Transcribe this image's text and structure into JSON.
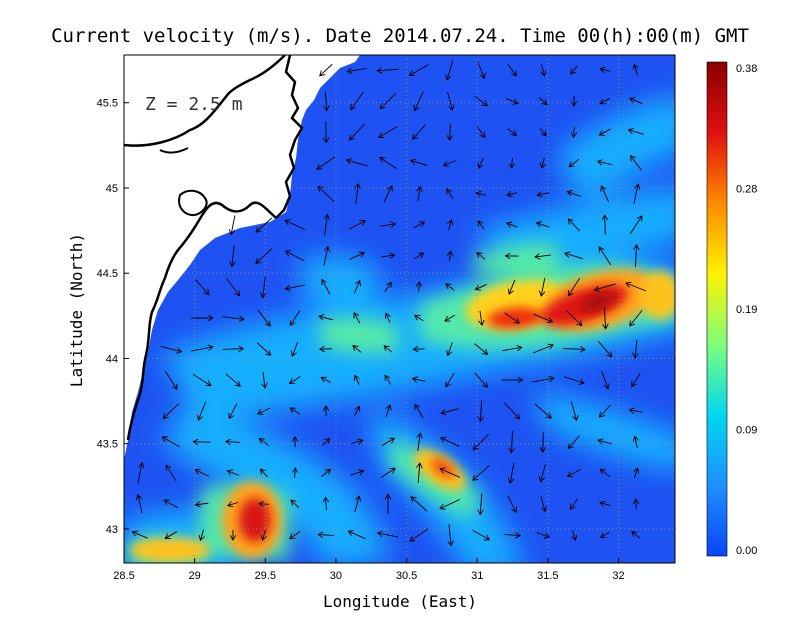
{
  "map": {
    "title": "Current velocity (m/s). Date 2014.07.24. Time 00(h):00(m) GMT",
    "depth_label": "Z = 2.5 m",
    "xlabel": "Longitude (East)",
    "ylabel": "Latitude (North)",
    "lon_range": [
      28.5,
      32.4
    ],
    "lat_range": [
      42.8,
      45.78
    ],
    "lon_ticks": [
      "28.5",
      "29",
      "29.5",
      "30",
      "30.5",
      "31",
      "31.5",
      "32"
    ],
    "lat_ticks": [
      "43",
      "43.5",
      "44",
      "44.5",
      "45",
      "45.5"
    ],
    "grid": true
  },
  "colorbar": {
    "ticks": [
      "0.38",
      "0.28",
      "0.19",
      "0.09",
      "0.00"
    ],
    "min": 0,
    "max": 0.38,
    "colors": [
      "#0a46f5",
      "#1e90ff",
      "#00d8f0",
      "#7dff7a",
      "#fff200",
      "#ff8a00",
      "#e01010",
      "#8a0000"
    ]
  },
  "colors": {
    "ocean_low": "#1f52f2",
    "land": "#ffffff",
    "coastline": "#000000"
  }
}
